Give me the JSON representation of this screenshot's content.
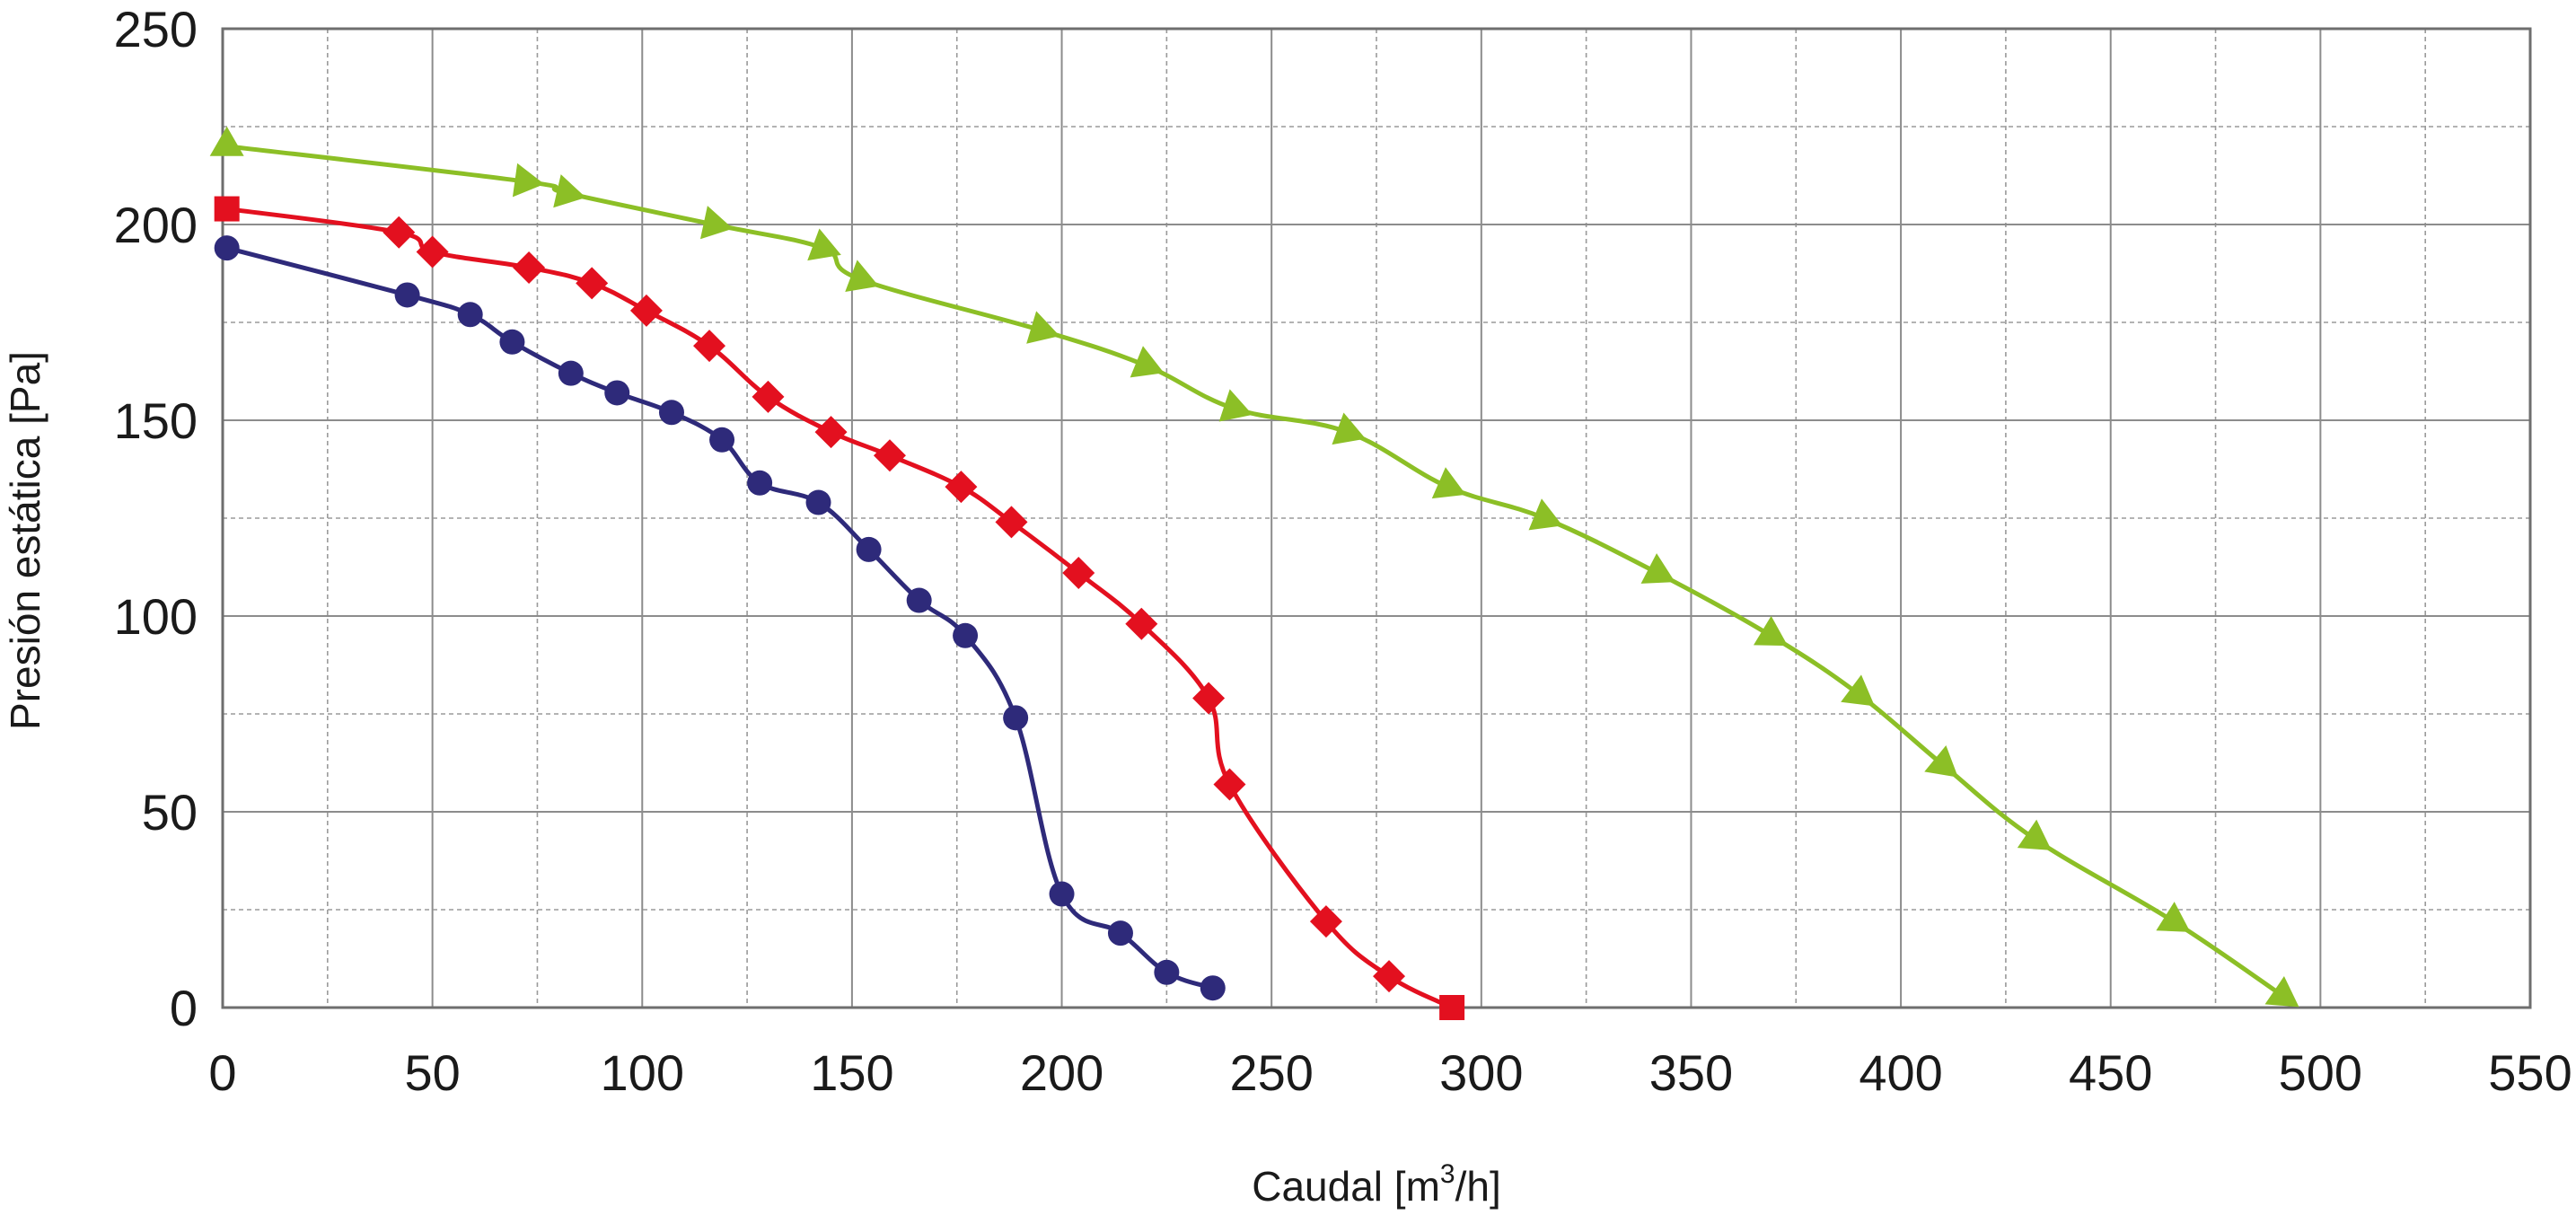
{
  "chart_data": {
    "type": "line",
    "title": "",
    "xlabel": "Caudal [m",
    "xlabel_sup": "3",
    "xlabel_tail": "/h]",
    "ylabel": "Presión estática [Pa]",
    "xlim": [
      0,
      550
    ],
    "ylim": [
      0,
      250
    ],
    "x_ticks": [
      0,
      50,
      100,
      150,
      200,
      250,
      300,
      350,
      400,
      450,
      500,
      550
    ],
    "y_ticks": [
      0,
      50,
      100,
      150,
      200,
      250
    ],
    "x_minor_step": 25,
    "y_minor_step": 25,
    "grid": true,
    "legend": "none",
    "series": [
      {
        "color": "#2e2a7a",
        "marker": "circle",
        "x": [
          1,
          44,
          59,
          69,
          83,
          94,
          107,
          119,
          128,
          142,
          154,
          166,
          177,
          189,
          200,
          214,
          225,
          236
        ],
        "y": [
          194,
          182,
          177,
          170,
          162,
          157,
          152,
          145,
          134,
          129,
          117,
          104,
          95,
          74,
          29,
          19,
          9,
          5
        ]
      },
      {
        "color": "#e3101f",
        "marker": "diamond",
        "marker_first": "square",
        "marker_last": "square",
        "x": [
          1,
          42,
          50,
          73,
          88,
          101,
          116,
          130,
          145,
          159,
          176,
          188,
          204,
          219,
          235,
          240,
          263,
          278,
          293
        ],
        "y": [
          204,
          198,
          193,
          189,
          185,
          178,
          169,
          156,
          147,
          141,
          133,
          124,
          111,
          98,
          79,
          57,
          22,
          8,
          0
        ]
      },
      {
        "color": "#8cbf26",
        "marker": "triangle",
        "x": [
          1,
          72,
          82,
          117,
          143,
          152,
          195,
          220,
          241,
          268,
          292,
          315,
          342,
          369,
          390,
          410,
          432,
          465,
          491
        ],
        "y": [
          220,
          211,
          208,
          200,
          194,
          186,
          173,
          164,
          153,
          147,
          133,
          125,
          111,
          95,
          80,
          62,
          43,
          22,
          3
        ]
      }
    ]
  }
}
